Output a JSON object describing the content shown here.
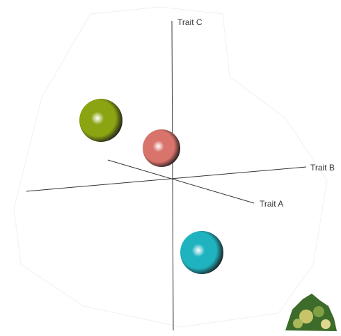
{
  "axes": {
    "a": "Trait A",
    "b": "Trait B",
    "c": "Trait C"
  },
  "points": [
    {
      "color": "#8aa412"
    },
    {
      "color": "#d9746c"
    },
    {
      "color": "#1fb3bf"
    }
  ]
}
